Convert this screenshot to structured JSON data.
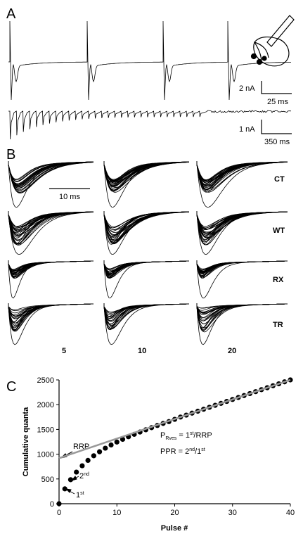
{
  "panel_a": {
    "label": "A",
    "scale_bar_1": {
      "current": "2 nA",
      "time": "25 ms"
    },
    "scale_bar_2": {
      "current": "1 nA",
      "time": "350 ms"
    }
  },
  "panel_b": {
    "label": "B",
    "scale_bar": "10 ms",
    "rows": [
      "CT",
      "WT",
      "RX",
      "TR"
    ],
    "columns": [
      "5",
      "10",
      "20"
    ]
  },
  "panel_c": {
    "label": "C"
  },
  "chart_data": {
    "type": "scatter",
    "x_label": "Pulse #",
    "y_label": "Cumulative quanta",
    "x": [
      0,
      1,
      2,
      3,
      4,
      5,
      6,
      7,
      8,
      9,
      10,
      11,
      12,
      13,
      14,
      15,
      16,
      17,
      18,
      19,
      20,
      21,
      22,
      23,
      24,
      25,
      26,
      27,
      28,
      29,
      30,
      31,
      32,
      33,
      34,
      35,
      36,
      37,
      38,
      39,
      40
    ],
    "values": [
      0,
      300,
      485,
      638,
      766,
      875,
      968,
      1049,
      1121,
      1186,
      1245,
      1300,
      1352,
      1401,
      1447,
      1493,
      1536,
      1580,
      1621,
      1658,
      1704,
      1750,
      1789,
      1829,
      1868,
      1908,
      1947,
      1987,
      2026,
      2066,
      2105,
      2145,
      2184,
      2224,
      2263,
      2303,
      2342,
      2382,
      2421,
      2461,
      2500
    ],
    "color": "#000000",
    "fit": {
      "x": [
        0,
        40
      ],
      "values": [
        920,
        2500
      ],
      "color": "#999999"
    },
    "xlim": [
      0,
      40
    ],
    "ylim": [
      0,
      2500
    ],
    "xticks": [
      0,
      10,
      20,
      30,
      40
    ],
    "yticks": [
      0,
      500,
      1000,
      1500,
      2000,
      2500
    ],
    "annotations": [
      {
        "text": "RRP"
      },
      {
        "parts": [
          "2",
          "nd"
        ]
      },
      {
        "parts": [
          "1",
          "st"
        ]
      },
      {
        "parts": [
          "P",
          "Rves",
          " = 1",
          "st",
          "/RRP"
        ]
      },
      {
        "parts": [
          "PPR = 2",
          "nd",
          "/1",
          "st"
        ]
      }
    ]
  }
}
